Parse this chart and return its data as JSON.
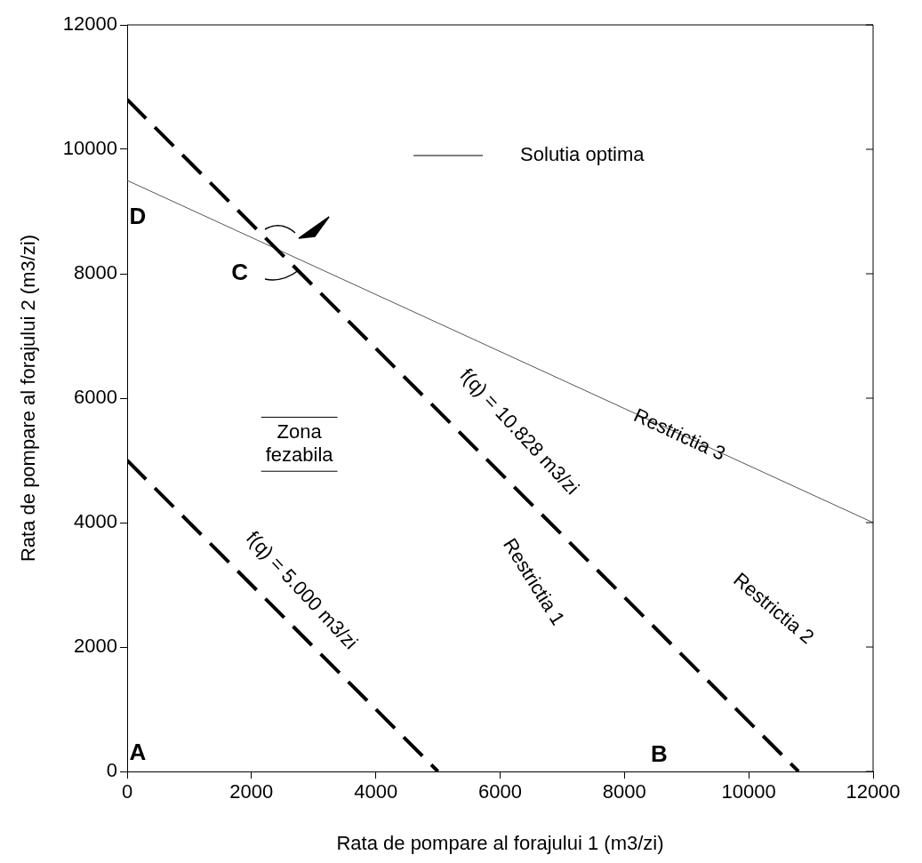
{
  "chart_data": {
    "type": "line",
    "xlabel": "Rata de pompare al forajului 1 (m3/zi)",
    "ylabel": "Rata de pompare al forajului 2 (m3/zi)",
    "xlim": [
      0,
      12000
    ],
    "ylim": [
      0,
      12000
    ],
    "xticks": [
      0,
      2000,
      4000,
      6000,
      8000,
      10000,
      12000
    ],
    "yticks": [
      0,
      2000,
      4000,
      6000,
      8000,
      10000,
      12000
    ],
    "series": [
      {
        "x": [
          0,
          5000
        ],
        "values": [
          5000,
          0
        ],
        "color": "#000000",
        "line_style": "dashed"
      },
      {
        "x": [
          0,
          10800
        ],
        "values": [
          10800,
          0
        ],
        "color": "#000000",
        "line_style": "dashed"
      },
      {
        "x": [
          0,
          12000
        ],
        "values": [
          9500,
          4000
        ],
        "color": "#555555",
        "line_style": "solid"
      }
    ],
    "annotations": [
      "f(q) = 5.000 m3/zi",
      "f(q) = 10.828 m3/zi",
      "Restrictia 1",
      "Restrictia 2",
      "Restrictia 3",
      "Zona fezabila",
      "A",
      "B",
      "C",
      "D",
      "Solutia optima"
    ],
    "grid": false,
    "legend": false
  }
}
